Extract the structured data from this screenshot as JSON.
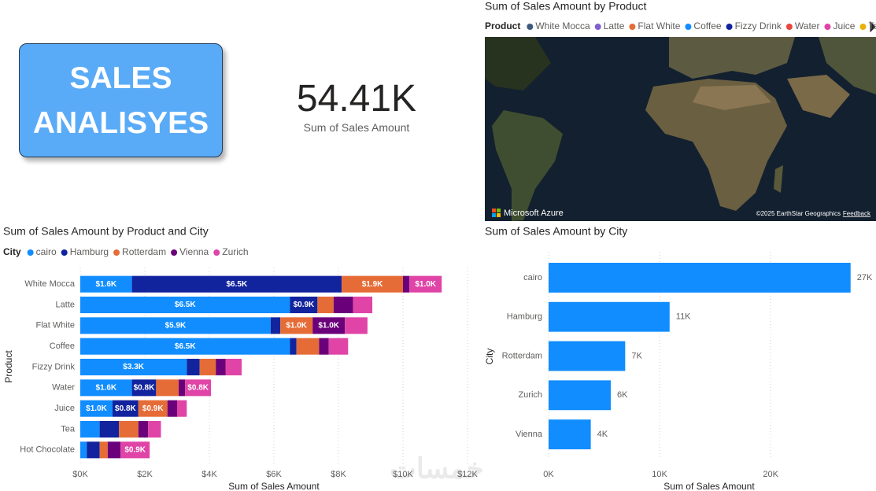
{
  "header": {
    "button": "SALES ANALISYES"
  },
  "card": {
    "value": "54.41K",
    "label": "Sum of Sales Amount"
  },
  "map": {
    "title": "Sum of Sales Amount by Product",
    "legend_title": "Product",
    "legend": [
      {
        "name": "White Mocca",
        "color": "#3c5a80"
      },
      {
        "name": "Latte",
        "color": "#8060d0"
      },
      {
        "name": "Flat White",
        "color": "#e66c37"
      },
      {
        "name": "Coffee",
        "color": "#118dff"
      },
      {
        "name": "Fizzy Drink",
        "color": "#12239e"
      },
      {
        "name": "Water",
        "color": "#e8463e"
      },
      {
        "name": "Juice",
        "color": "#e044a7"
      },
      {
        "name": "Tea",
        "color": "#e8b10c"
      }
    ],
    "provider": "Microsoft Azure",
    "attribution": "©2025 EarthStar Geographics",
    "feedback": "Feedback"
  },
  "watermark": "خمسات",
  "chart_data": [
    {
      "type": "bar",
      "orientation": "horizontal",
      "stacked": true,
      "title": "Sum of Sales Amount by Product and City",
      "legend_title": "City",
      "x_label": "Sum of Sales Amount",
      "y_label": "Product",
      "grid": true,
      "categories": [
        "White Mocca",
        "Latte",
        "Flat White",
        "Coffee",
        "Fizzy Drink",
        "Water",
        "Juice",
        "Tea",
        "Hot Chocolate"
      ],
      "series": [
        {
          "name": "cairo",
          "color": "#118dff",
          "values": [
            1600,
            6500,
            5900,
            6500,
            3300,
            1600,
            1000,
            600,
            200
          ],
          "value_labels": [
            "$1.6K",
            "$6.5K",
            "$5.9K",
            "$6.5K",
            "$3.3K",
            "$1.6K",
            "$1.0K",
            null,
            null
          ]
        },
        {
          "name": "Hamburg",
          "color": "#12239e",
          "values": [
            6500,
            850,
            300,
            200,
            400,
            750,
            800,
            600,
            400
          ],
          "value_labels": [
            "$6.5K",
            "$0.9K",
            null,
            null,
            null,
            "$0.8K",
            "$0.8K",
            null,
            null
          ]
        },
        {
          "name": "Rotterdam",
          "color": "#e66c37",
          "values": [
            1900,
            500,
            1000,
            700,
            500,
            700,
            900,
            600,
            250
          ],
          "value_labels": [
            "$1.9K",
            null,
            "$1.0K",
            null,
            null,
            null,
            "$0.9K",
            null,
            null
          ]
        },
        {
          "name": "Vienna",
          "color": "#6b007b",
          "values": [
            200,
            600,
            1000,
            300,
            300,
            200,
            300,
            300,
            400
          ],
          "value_labels": [
            null,
            null,
            "$1.0K",
            null,
            null,
            null,
            null,
            null,
            null
          ]
        },
        {
          "name": "Zurich",
          "color": "#e044a7",
          "values": [
            1000,
            600,
            700,
            600,
            500,
            800,
            300,
            400,
            900
          ],
          "value_labels": [
            "$1.0K",
            null,
            null,
            null,
            null,
            "$0.8K",
            null,
            null,
            "$0.9K"
          ]
        }
      ],
      "xlim": [
        0,
        12000
      ],
      "xticks": [
        {
          "value": 0,
          "label": "$0K"
        },
        {
          "value": 2000,
          "label": "$2K"
        },
        {
          "value": 4000,
          "label": "$4K"
        },
        {
          "value": 6000,
          "label": "$6K"
        },
        {
          "value": 8000,
          "label": "$8K"
        },
        {
          "value": 10000,
          "label": "$10K"
        },
        {
          "value": 12000,
          "label": "$12K"
        }
      ]
    },
    {
      "type": "bar",
      "orientation": "horizontal",
      "title": "Sum of Sales Amount by City",
      "x_label": "Sum of Sales Amount",
      "y_label": "City",
      "grid": true,
      "color": "#118dff",
      "categories": [
        "cairo",
        "Hamburg",
        "Rotterdam",
        "Zurich",
        "Vienna"
      ],
      "values": [
        27200,
        10900,
        6900,
        5600,
        3800
      ],
      "value_labels": [
        "27K",
        "11K",
        "7K",
        "6K",
        "4K"
      ],
      "xlim": [
        0,
        28000
      ],
      "xticks": [
        {
          "value": 0,
          "label": "0K"
        },
        {
          "value": 10000,
          "label": "10K"
        },
        {
          "value": 20000,
          "label": "20K"
        }
      ]
    }
  ]
}
